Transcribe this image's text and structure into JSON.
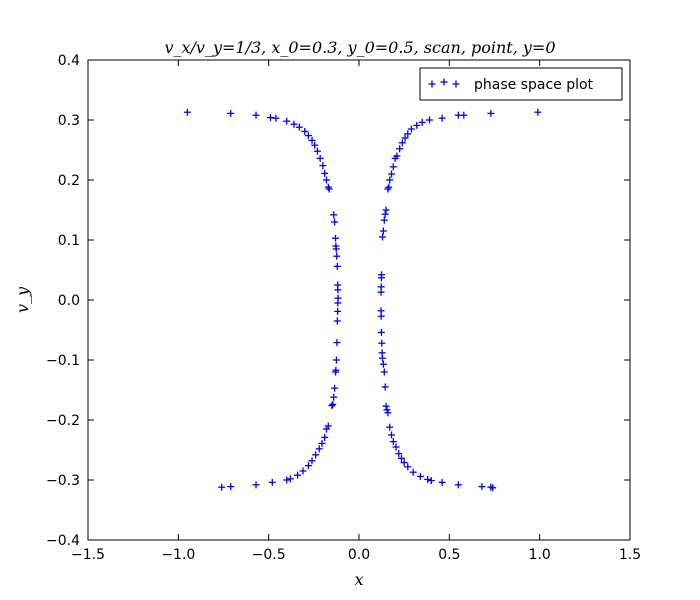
{
  "chart_data": {
    "type": "scatter",
    "title": "v_x/v_y=1/3, x_0=0.3, y_0=0.5, scan, point, y=0",
    "xlabel": "x",
    "ylabel": "v_y",
    "xlim": [
      -1.5,
      1.5
    ],
    "ylim": [
      -0.4,
      0.4
    ],
    "xticks": [
      "−1.5",
      "−1.0",
      "−0.5",
      "0.0",
      "0.5",
      "1.0",
      "1.5"
    ],
    "xtick_values": [
      -1.5,
      -1.0,
      -0.5,
      0.0,
      0.5,
      1.0,
      1.5
    ],
    "yticks": [
      "−0.4",
      "−0.3",
      "−0.2",
      "−0.1",
      "0.0",
      "0.1",
      "0.2",
      "0.3",
      "0.4"
    ],
    "ytick_values": [
      -0.4,
      -0.3,
      -0.2,
      -0.1,
      0.0,
      0.1,
      0.2,
      0.3,
      0.4
    ],
    "grid": false,
    "legend_position": "top-right",
    "series": [
      {
        "name": "phase space plot",
        "color": "#0000ff",
        "marker": "plus",
        "points": [
          [
            -0.95,
            0.313
          ],
          [
            -0.71,
            0.311
          ],
          [
            -0.57,
            0.308
          ],
          [
            -0.49,
            0.304
          ],
          [
            -0.46,
            0.303
          ],
          [
            -0.4,
            0.298
          ],
          [
            -0.36,
            0.293
          ],
          [
            -0.33,
            0.288
          ],
          [
            -0.3,
            0.281
          ],
          [
            -0.28,
            0.274
          ],
          [
            -0.26,
            0.266
          ],
          [
            -0.245,
            0.258
          ],
          [
            -0.23,
            0.248
          ],
          [
            -0.215,
            0.236
          ],
          [
            -0.2,
            0.224
          ],
          [
            -0.19,
            0.211
          ],
          [
            -0.18,
            0.2
          ],
          [
            -0.17,
            0.188
          ],
          [
            -0.165,
            0.185
          ],
          [
            -0.14,
            0.142
          ],
          [
            -0.135,
            0.13
          ],
          [
            -0.13,
            0.103
          ],
          [
            -0.128,
            0.09
          ],
          [
            -0.126,
            0.085
          ],
          [
            -0.123,
            0.073
          ],
          [
            -0.12,
            0.056
          ],
          [
            -0.118,
            0.025
          ],
          [
            -0.117,
            0.017
          ],
          [
            -0.116,
            0.003
          ],
          [
            -0.117,
            -0.005
          ],
          [
            -0.118,
            -0.019
          ],
          [
            -0.12,
            -0.035
          ],
          [
            -0.122,
            -0.071
          ],
          [
            -0.125,
            -0.1
          ],
          [
            -0.128,
            -0.117
          ],
          [
            -0.13,
            -0.12
          ],
          [
            -0.135,
            -0.147
          ],
          [
            -0.14,
            -0.162
          ],
          [
            -0.145,
            -0.174
          ],
          [
            -0.15,
            -0.176
          ],
          [
            -0.17,
            -0.21
          ],
          [
            -0.18,
            -0.215
          ],
          [
            -0.19,
            -0.229
          ],
          [
            -0.205,
            -0.239
          ],
          [
            -0.22,
            -0.248
          ],
          [
            -0.24,
            -0.258
          ],
          [
            -0.26,
            -0.268
          ],
          [
            -0.28,
            -0.276
          ],
          [
            -0.31,
            -0.285
          ],
          [
            -0.34,
            -0.292
          ],
          [
            -0.38,
            -0.298
          ],
          [
            -0.4,
            -0.3
          ],
          [
            -0.48,
            -0.304
          ],
          [
            -0.57,
            -0.308
          ],
          [
            -0.71,
            -0.311
          ],
          [
            -0.76,
            -0.312
          ],
          [
            0.99,
            0.313
          ],
          [
            0.73,
            0.311
          ],
          [
            0.58,
            0.308
          ],
          [
            0.55,
            0.308
          ],
          [
            0.46,
            0.303
          ],
          [
            0.39,
            0.3
          ],
          [
            0.35,
            0.296
          ],
          [
            0.32,
            0.291
          ],
          [
            0.29,
            0.285
          ],
          [
            0.27,
            0.277
          ],
          [
            0.255,
            0.27
          ],
          [
            0.24,
            0.262
          ],
          [
            0.225,
            0.252
          ],
          [
            0.21,
            0.24
          ],
          [
            0.2,
            0.236
          ],
          [
            0.19,
            0.222
          ],
          [
            0.18,
            0.21
          ],
          [
            0.17,
            0.2
          ],
          [
            0.165,
            0.188
          ],
          [
            0.16,
            0.185
          ],
          [
            0.15,
            0.15
          ],
          [
            0.145,
            0.143
          ],
          [
            0.14,
            0.133
          ],
          [
            0.135,
            0.115
          ],
          [
            0.13,
            0.105
          ],
          [
            0.125,
            0.042
          ],
          [
            0.124,
            0.037
          ],
          [
            0.123,
            0.022
          ],
          [
            0.122,
            0.013
          ],
          [
            0.122,
            -0.018
          ],
          [
            0.123,
            -0.027
          ],
          [
            0.124,
            -0.054
          ],
          [
            0.126,
            -0.072
          ],
          [
            0.128,
            -0.088
          ],
          [
            0.13,
            -0.097
          ],
          [
            0.135,
            -0.107
          ],
          [
            0.14,
            -0.12
          ],
          [
            0.145,
            -0.145
          ],
          [
            0.15,
            -0.177
          ],
          [
            0.155,
            -0.183
          ],
          [
            0.16,
            -0.188
          ],
          [
            0.17,
            -0.212
          ],
          [
            0.18,
            -0.225
          ],
          [
            0.19,
            -0.236
          ],
          [
            0.205,
            -0.245
          ],
          [
            0.22,
            -0.256
          ],
          [
            0.235,
            -0.264
          ],
          [
            0.25,
            -0.271
          ],
          [
            0.27,
            -0.278
          ],
          [
            0.3,
            -0.287
          ],
          [
            0.34,
            -0.294
          ],
          [
            0.38,
            -0.299
          ],
          [
            0.4,
            -0.301
          ],
          [
            0.46,
            -0.304
          ],
          [
            0.55,
            -0.308
          ],
          [
            0.68,
            -0.311
          ],
          [
            0.73,
            -0.312
          ],
          [
            0.74,
            -0.313
          ]
        ]
      }
    ]
  }
}
